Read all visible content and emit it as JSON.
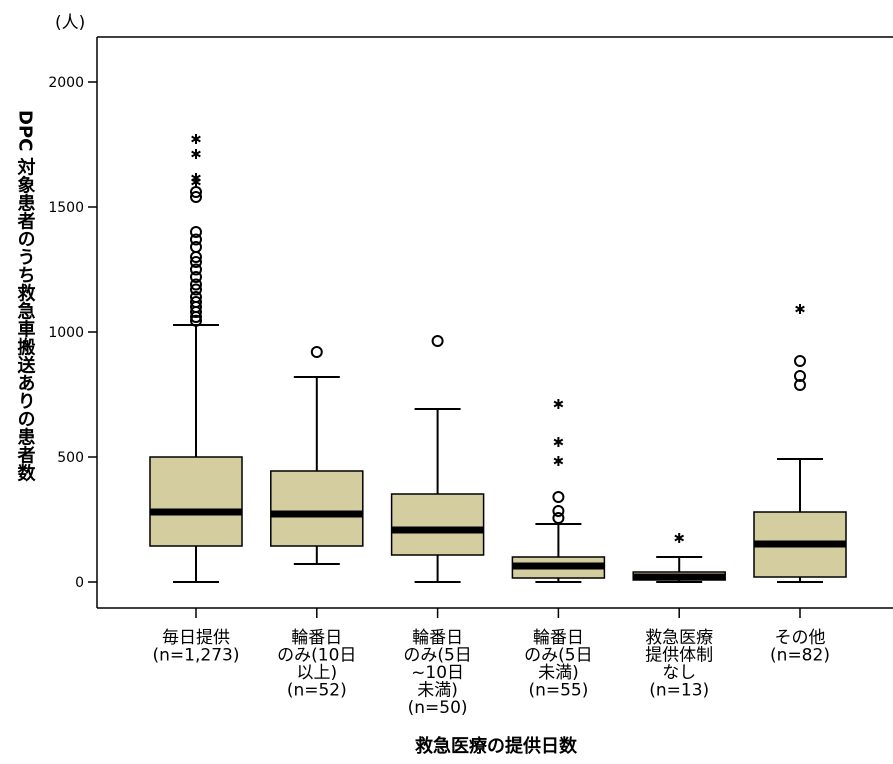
{
  "chart_data": {
    "type": "box",
    "unit_label": "(人)",
    "ylabel": "DPC 対象患者のうち救急車搬送ありの患者数",
    "xlabel": "救急医療の提供日数",
    "categories": [
      [
        "毎日提供",
        "(n=1,273)"
      ],
      [
        "輪番日",
        "のみ(10日",
        "以上)",
        "(n=52)"
      ],
      [
        "輪番日",
        "のみ(5日",
        "~10日",
        "未満)",
        "(n=50)"
      ],
      [
        "輪番日",
        "のみ(5日",
        "未満)",
        "(n=55)"
      ],
      [
        "救急医療",
        "提供体制",
        "なし",
        "(n=13)"
      ],
      [
        "その他",
        "(n=82)"
      ]
    ],
    "boxes": [
      {
        "whislo": 0,
        "q1": 144,
        "med": 280,
        "q3": 500,
        "whishi": 1028,
        "outliers": [
          1045,
          1060,
          1080,
          1100,
          1120,
          1140,
          1170,
          1190,
          1220,
          1250,
          1280,
          1300,
          1340,
          1370,
          1400,
          1540,
          1560
        ],
        "extremes": [
          1600,
          1616,
          1712,
          1772
        ]
      },
      {
        "whislo": 72,
        "q1": 144,
        "med": 272,
        "q3": 444,
        "whishi": 820,
        "outliers": [
          920
        ],
        "extremes": []
      },
      {
        "whislo": 0,
        "q1": 108,
        "med": 208,
        "q3": 352,
        "whishi": 692,
        "outliers": [
          964
        ],
        "extremes": []
      },
      {
        "whislo": 0,
        "q1": 16,
        "med": 64,
        "q3": 100,
        "whishi": 232,
        "outliers": [
          256,
          284,
          340
        ],
        "extremes": [
          484,
          560,
          712
        ]
      },
      {
        "whislo": 0,
        "q1": 8,
        "med": 20,
        "q3": 40,
        "whishi": 100,
        "outliers": [],
        "extremes": [
          176
        ]
      },
      {
        "whislo": 0,
        "q1": 20,
        "med": 152,
        "q3": 280,
        "whishi": 492,
        "outliers": [
          788,
          824,
          884
        ],
        "extremes": [
          1092
        ]
      }
    ],
    "color": "#d4cd9f",
    "ylim": [
      -104,
      2180
    ],
    "yticks": [
      0,
      500,
      1000,
      1500,
      2000
    ]
  }
}
